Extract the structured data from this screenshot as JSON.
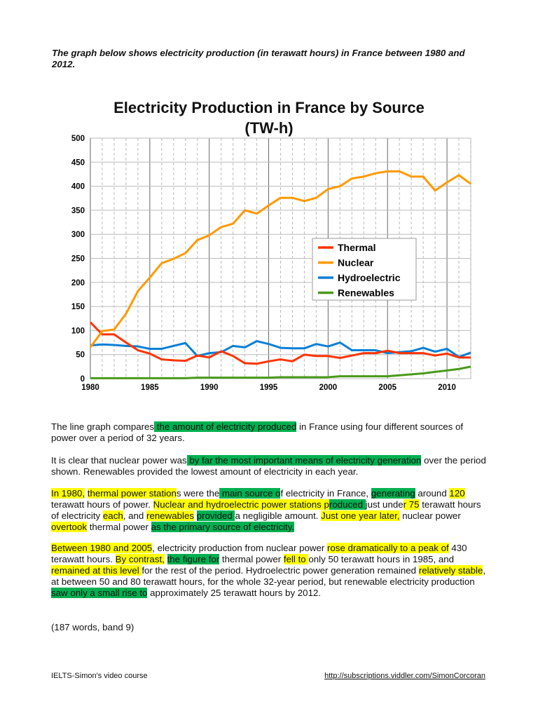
{
  "prompt": "The graph below shows electricity production (in terawatt hours) in France between 1980 and 2012.",
  "chart_data": {
    "type": "line",
    "title": "Electricity Production in France by Source",
    "subtitle": "(TW-h)",
    "x": [
      1980,
      1981,
      1982,
      1983,
      1984,
      1985,
      1986,
      1987,
      1988,
      1989,
      1990,
      1991,
      1992,
      1993,
      1994,
      1995,
      1996,
      1997,
      1998,
      1999,
      2000,
      2001,
      2002,
      2003,
      2004,
      2005,
      2006,
      2007,
      2008,
      2009,
      2010,
      2011,
      2012
    ],
    "xlim": [
      1980,
      2012
    ],
    "ylim": [
      0,
      500
    ],
    "x_ticks": [
      "1980",
      "1985",
      "1990",
      "1995",
      "2000",
      "2005",
      "2010"
    ],
    "y_ticks": [
      "0",
      "50",
      "100",
      "150",
      "200",
      "250",
      "300",
      "350",
      "400",
      "450",
      "500"
    ],
    "grid": true,
    "legend_position": "center-right",
    "series": [
      {
        "name": "Thermal",
        "color": "#ff3300",
        "values": [
          117,
          92,
          92,
          75,
          59,
          52,
          40,
          38,
          37,
          48,
          44,
          57,
          47,
          32,
          31,
          36,
          40,
          36,
          50,
          47,
          47,
          43,
          48,
          53,
          53,
          58,
          53,
          53,
          53,
          48,
          52,
          44,
          44
        ]
      },
      {
        "name": "Nuclear",
        "color": "#ff9900",
        "values": [
          65,
          99,
          102,
          135,
          182,
          210,
          240,
          249,
          261,
          288,
          298,
          315,
          322,
          350,
          343,
          360,
          376,
          376,
          369,
          376,
          394,
          400,
          416,
          420,
          427,
          431,
          431,
          420,
          420,
          391,
          408,
          423,
          405
        ]
      },
      {
        "name": "Hydroelectric",
        "color": "#0a7fd6",
        "values": [
          69,
          71,
          70,
          68,
          67,
          62,
          62,
          68,
          74,
          47,
          53,
          55,
          68,
          65,
          78,
          72,
          64,
          63,
          63,
          72,
          67,
          75,
          59,
          59,
          59,
          53,
          55,
          57,
          64,
          56,
          62,
          45,
          54
        ]
      },
      {
        "name": "Renewables",
        "color": "#4a9a1a",
        "values": [
          1,
          1,
          1,
          1,
          1,
          1,
          1,
          1,
          1,
          2,
          2,
          2,
          2,
          2,
          2,
          2,
          3,
          3,
          3,
          3,
          3,
          5,
          5,
          5,
          5,
          5,
          7,
          9,
          11,
          14,
          17,
          20,
          25
        ]
      }
    ]
  },
  "paragraphs": [
    [
      {
        "t": "The line graph compares"
      },
      {
        "t": " the amount of electricity produced",
        "h": "g"
      },
      {
        "t": " in France using four different sources of power over a period of 32 years."
      }
    ],
    [
      {
        "t": "It is clear that nuclear power was"
      },
      {
        "t": " by far the most important means of electricity generation",
        "h": "g"
      },
      {
        "t": " over the period shown. Renewables provided the lowest amount of electricity in each year."
      }
    ],
    [
      {
        "t": "In 1980,",
        "h": "y"
      },
      {
        "t": " "
      },
      {
        "t": "thermal power station",
        "h": "y"
      },
      {
        "t": "s were the"
      },
      {
        "t": " main source o",
        "h": "g"
      },
      {
        "t": "f electricity in France, "
      },
      {
        "t": "generating",
        "h": "g"
      },
      {
        "t": " around "
      },
      {
        "t": "120",
        "h": "y"
      },
      {
        "t": " terawatt hours of power. "
      },
      {
        "t": "Nuclear and hydroelectric power stations p",
        "h": "y"
      },
      {
        "t": "roduced ",
        "h": "g"
      },
      {
        "t": "just unde"
      },
      {
        "t": "r 75",
        "h": "y"
      },
      {
        "t": " terawatt hours of electricity "
      },
      {
        "t": "each",
        "h": "y"
      },
      {
        "t": ", and "
      },
      {
        "t": "renewables",
        "h": "y"
      },
      {
        "t": " "
      },
      {
        "t": "provided ",
        "h": "g"
      },
      {
        "t": "a negligible amount. "
      },
      {
        "t": "Just one year later,",
        "h": "y"
      },
      {
        "t": " nuclear power "
      },
      {
        "t": "overtook",
        "h": "y"
      },
      {
        "t": " thermal power "
      },
      {
        "t": "as the primary source of electricity.",
        "h": "g"
      }
    ],
    [
      {
        "t": "Between 1980 and 2005",
        "h": "y"
      },
      {
        "t": ", electricity production from nuclear power "
      },
      {
        "t": "rose dramatically to a peak of",
        "h": "y"
      },
      {
        "t": " 430 terawatt hours. "
      },
      {
        "t": "By contrast,",
        "h": "y"
      },
      {
        "t": " "
      },
      {
        "t": "the figure for",
        "h": "g"
      },
      {
        "t": " thermal power "
      },
      {
        "t": "fell to ",
        "h": "y"
      },
      {
        "t": "only 50 terawatt hours in 1985, and "
      },
      {
        "t": "remained at this level ",
        "h": "y"
      },
      {
        "t": "for the rest of the period. Hydroelectric power generation remained "
      },
      {
        "t": "relatively stable",
        "h": "y"
      },
      {
        "t": ", at between 50 and 80 terawatt hours, for the whole 32-year period, but renewable electricity production"
      },
      {
        "t": " saw only a small rise to",
        "h": "g"
      },
      {
        "t": " approximately 25 terawatt hours by 2012."
      }
    ],
    [
      {
        "t": "(187 words, band 9)"
      }
    ]
  ],
  "footer": {
    "left": "IELTS-Simon's video course",
    "right": "http://subscriptions.viddler.com/SimonCorcoran"
  }
}
